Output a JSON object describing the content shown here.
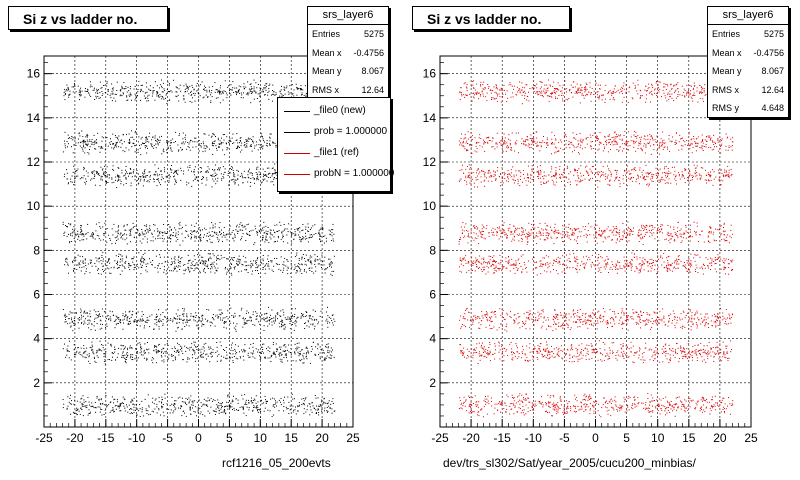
{
  "chart_data": [
    {
      "type": "scatter",
      "title": "Si z vs ladder no.",
      "color": "#000000",
      "xlim": [
        -25,
        25
      ],
      "ylim": [
        0,
        16.8
      ],
      "xticks": [
        -25,
        -20,
        -15,
        -10,
        -5,
        0,
        5,
        10,
        15,
        20,
        25
      ],
      "yticks": [
        2,
        4,
        6,
        8,
        10,
        12,
        14,
        16
      ],
      "grid": true,
      "x_range": [
        -22,
        22
      ],
      "y_bands": [
        15.2,
        12.9,
        11.4,
        8.8,
        7.4,
        4.9,
        3.4,
        1.0
      ],
      "footer": "rcf1216_05_200evts",
      "stats": {
        "name": "srs_layer6",
        "rows": [
          {
            "label": "Entries",
            "value": "5275"
          },
          {
            "label": "Mean x",
            "value": "-0.4756"
          },
          {
            "label": "Mean y",
            "value": "8.067"
          },
          {
            "label": "RMS x",
            "value": "12.64"
          }
        ]
      },
      "legend": [
        {
          "label": "_file0 (new)",
          "color": "#000000"
        },
        {
          "label": "prob = 1.000000",
          "color": "#000000"
        },
        {
          "label": "_file1 (ref)",
          "color": "#cc0000"
        },
        {
          "label": "probN = 1.000000",
          "color": "#cc0000"
        }
      ]
    },
    {
      "type": "scatter",
      "title": "Si z vs ladder no.",
      "color": "#dd0000",
      "xlim": [
        -25,
        25
      ],
      "ylim": [
        0,
        16.8
      ],
      "xticks": [
        -25,
        -20,
        -15,
        -10,
        -5,
        0,
        5,
        10,
        15,
        20,
        25
      ],
      "yticks": [
        2,
        4,
        6,
        8,
        10,
        12,
        14,
        16
      ],
      "grid": true,
      "x_range": [
        -22,
        22
      ],
      "y_bands": [
        15.2,
        12.9,
        11.4,
        8.8,
        7.4,
        4.9,
        3.4,
        1.0
      ],
      "footer": "dev/trs_sl302/Sat/year_2005/cucu200_minbias/",
      "stats": {
        "name": "srs_layer6",
        "rows": [
          {
            "label": "Entries",
            "value": "5275"
          },
          {
            "label": "Mean x",
            "value": "-0.4756"
          },
          {
            "label": "Mean y",
            "value": "8.067"
          },
          {
            "label": "RMS x",
            "value": "12.64"
          },
          {
            "label": "RMS y",
            "value": "4.648"
          }
        ]
      }
    }
  ]
}
